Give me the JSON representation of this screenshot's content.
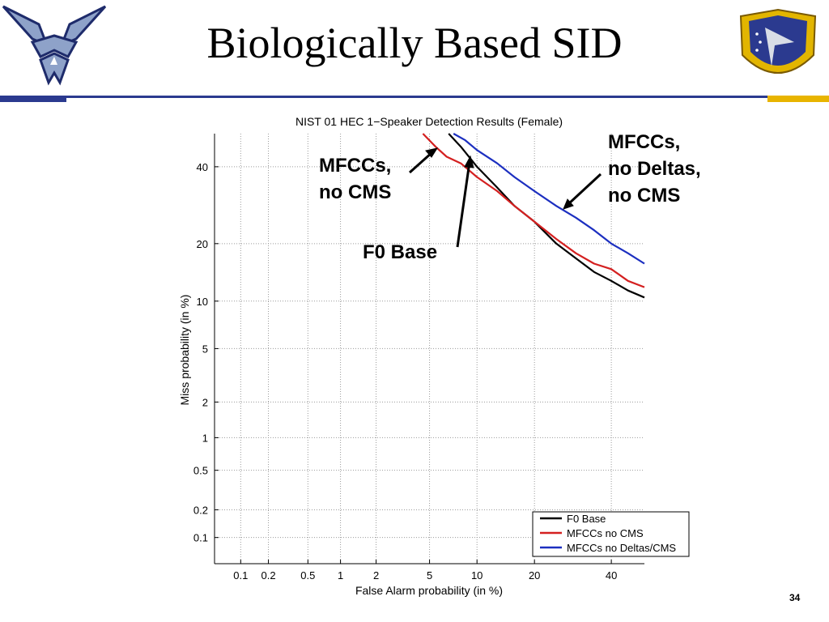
{
  "slide": {
    "title": "Biologically Based SID",
    "page_number": "34",
    "annotations": {
      "mfcc_no_cms": "MFCCs,\nno CMS",
      "f0_base": "F0 Base",
      "mfcc_no_deltas": "MFCCs,\nno Deltas,\nno CMS"
    },
    "colors": {
      "navy": "#2b3a8f",
      "gold": "#e8b400"
    },
    "logos": {
      "left": "air-force-wings-icon",
      "right": "afrl-shield-icon"
    }
  },
  "chart_data": {
    "type": "line",
    "title": "NIST 01 HEC 1−Speaker Detection Results (Female)",
    "xlabel": "False Alarm probability (in %)",
    "ylabel": "Miss probability (in %)",
    "scale": "normal-deviate (DET)",
    "grid": true,
    "legend_position": "bottom-right",
    "xlim": [
      0.05,
      50
    ],
    "ylim": [
      0.05,
      50
    ],
    "x_ticks": [
      "0.1",
      "0.2",
      "0.5",
      "1",
      "2",
      "5",
      "10",
      "20",
      "40"
    ],
    "y_ticks": [
      "0.1",
      "0.2",
      "0.5",
      "1",
      "2",
      "5",
      "10",
      "20",
      "40"
    ],
    "series": [
      {
        "name": "F0 Base",
        "color": "#000000",
        "x": [
          6.7,
          8,
          10,
          13,
          16,
          20,
          25,
          30,
          35,
          40,
          45,
          50
        ],
        "y": [
          50,
          46,
          40,
          34,
          29,
          25,
          20,
          17,
          14.5,
          13,
          11.5,
          10.5
        ]
      },
      {
        "name": "MFCCs no CMS",
        "color": "#d42020",
        "x": [
          4.5,
          5.5,
          6.5,
          8,
          10,
          13,
          16,
          20,
          25,
          30,
          35,
          40,
          45,
          50
        ],
        "y": [
          50,
          46,
          43,
          41,
          37,
          33,
          29,
          25,
          21,
          18,
          16,
          15,
          13,
          12
        ]
      },
      {
        "name": "MFCCs no Deltas/CMS",
        "color": "#1c2fc0",
        "x": [
          7.2,
          8.5,
          10,
          13,
          16,
          20,
          25,
          30,
          35,
          40,
          45,
          50
        ],
        "y": [
          50,
          48,
          45,
          41,
          37,
          33,
          29,
          26,
          23,
          20,
          18,
          16
        ]
      }
    ]
  }
}
